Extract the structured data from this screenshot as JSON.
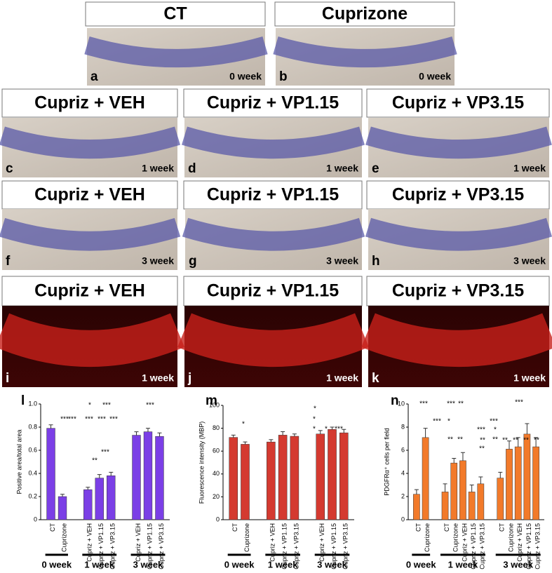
{
  "panels": [
    {
      "title": "CT",
      "letter": "a",
      "week": "0 week"
    },
    {
      "title": "Cuprizone",
      "letter": "b",
      "week": "0 week"
    },
    {
      "title": "Cupriz + VEH",
      "letter": "c",
      "week": "1 week"
    },
    {
      "title": "Cupriz + VP1.15",
      "letter": "d",
      "week": "1 week"
    },
    {
      "title": "Cupriz + VP3.15",
      "letter": "e",
      "week": "1 week"
    },
    {
      "title": "Cupriz + VEH",
      "letter": "f",
      "week": "3 week"
    },
    {
      "title": "Cupriz + VP1.15",
      "letter": "g",
      "week": "3 week"
    },
    {
      "title": "Cupriz + VP3.15",
      "letter": "h",
      "week": "3 week"
    },
    {
      "title": "Cupriz + VEH",
      "letter": "i",
      "week": "1 week"
    },
    {
      "title": "Cupriz + VP1.15",
      "letter": "j",
      "week": "1 week"
    },
    {
      "title": "Cupriz + VP3.15",
      "letter": "k",
      "week": "1 week"
    }
  ],
  "chart_data": [
    {
      "type": "bar",
      "letter": "l",
      "ylabel": "Positive area/total area",
      "color": "#7b3fe6",
      "ylim": [
        0,
        1
      ],
      "yticks": [
        0,
        0.2,
        0.4,
        0.6,
        0.8,
        {
          "value": 1,
          "label": "1.0"
        }
      ],
      "groups": [
        {
          "label": "0 week",
          "categories": [
            "CT",
            "Cuprizone"
          ],
          "values": [
            0.79,
            0.2
          ],
          "errors": [
            0.03,
            0.02
          ]
        },
        {
          "label": "1 week",
          "categories": [
            "Cupriz + VEH",
            "Cupriz + VP1.15",
            "Cupriz + VP3.15"
          ],
          "values": [
            0.26,
            0.36,
            0.38
          ],
          "errors": [
            0.02,
            0.03,
            0.03
          ]
        },
        {
          "label": "3 week",
          "categories": [
            "Cupriz + VEH",
            "Cupriz + VP1.15",
            "Cupriz + VP3.15"
          ],
          "values": [
            0.73,
            0.76,
            0.72
          ],
          "errors": [
            0.03,
            0.03,
            0.03
          ]
        }
      ],
      "annotations": [
        "***",
        "*",
        "***",
        "***",
        "***",
        "***",
        "***",
        "***",
        "**",
        "***"
      ]
    },
    {
      "type": "bar",
      "letter": "m",
      "ylabel": "Fluorescence intensity (MBP)",
      "color": "#d43a30",
      "ylim": [
        0,
        100
      ],
      "yticks": [
        0,
        20,
        40,
        60,
        80,
        100
      ],
      "groups": [
        {
          "label": "0 week",
          "categories": [
            "CT",
            "Cuprizone"
          ],
          "values": [
            72,
            66
          ],
          "errors": [
            2,
            2
          ]
        },
        {
          "label": "1 week",
          "categories": [
            "Cupriz + VEH",
            "Cupriz + VP1.15",
            "Cupriz + VP3.15"
          ],
          "values": [
            68,
            74,
            73
          ],
          "errors": [
            2,
            3,
            2
          ]
        },
        {
          "label": "3 week",
          "categories": [
            "Cupriz + VEH",
            "Cupriz + VP1.15",
            "Cupriz + VP3.15"
          ],
          "values": [
            75,
            79,
            76
          ],
          "errors": [
            3,
            2,
            3
          ]
        }
      ],
      "annotations": [
        "*",
        "*",
        "*",
        "*",
        "*",
        "***"
      ]
    },
    {
      "type": "bar",
      "letter": "n",
      "ylabel": "PDGFRα⁺ cells per field",
      "color": "#f27a2a",
      "ylim": [
        0,
        10
      ],
      "yticks": [
        0,
        2,
        4,
        6,
        8,
        10
      ],
      "groups": [
        {
          "label": "0 week",
          "categories": [
            "CT",
            "Cuprizone"
          ],
          "values": [
            2.2,
            7.1
          ],
          "errors": [
            0.4,
            0.8
          ]
        },
        {
          "label": "1 week",
          "categories": [
            "CT",
            "Cuprizone",
            "Cupriz + VEH",
            "Cupriz + VP1.15",
            "Cupriz + VP3.15"
          ],
          "values": [
            2.4,
            4.9,
            5.1,
            2.4,
            3.1
          ],
          "errors": [
            0.7,
            0.4,
            0.7,
            0.6,
            0.6
          ]
        },
        {
          "label": "3 week",
          "categories": [
            "CT",
            "Cuprizone",
            "Cupriz + VEH",
            "Cupriz + VP1.15",
            "Cupriz + VP3.15"
          ],
          "values": [
            3.6,
            6.1,
            6.3,
            7.4,
            6.3
          ],
          "errors": [
            0.5,
            0.7,
            0.8,
            0.9,
            0.8
          ]
        }
      ],
      "annotations": [
        "***",
        "***",
        "**",
        "***",
        "***",
        "*",
        "***",
        "***",
        "**",
        "**",
        "**",
        "*",
        "**",
        "**",
        "**",
        "**",
        "**",
        "**"
      ]
    }
  ]
}
